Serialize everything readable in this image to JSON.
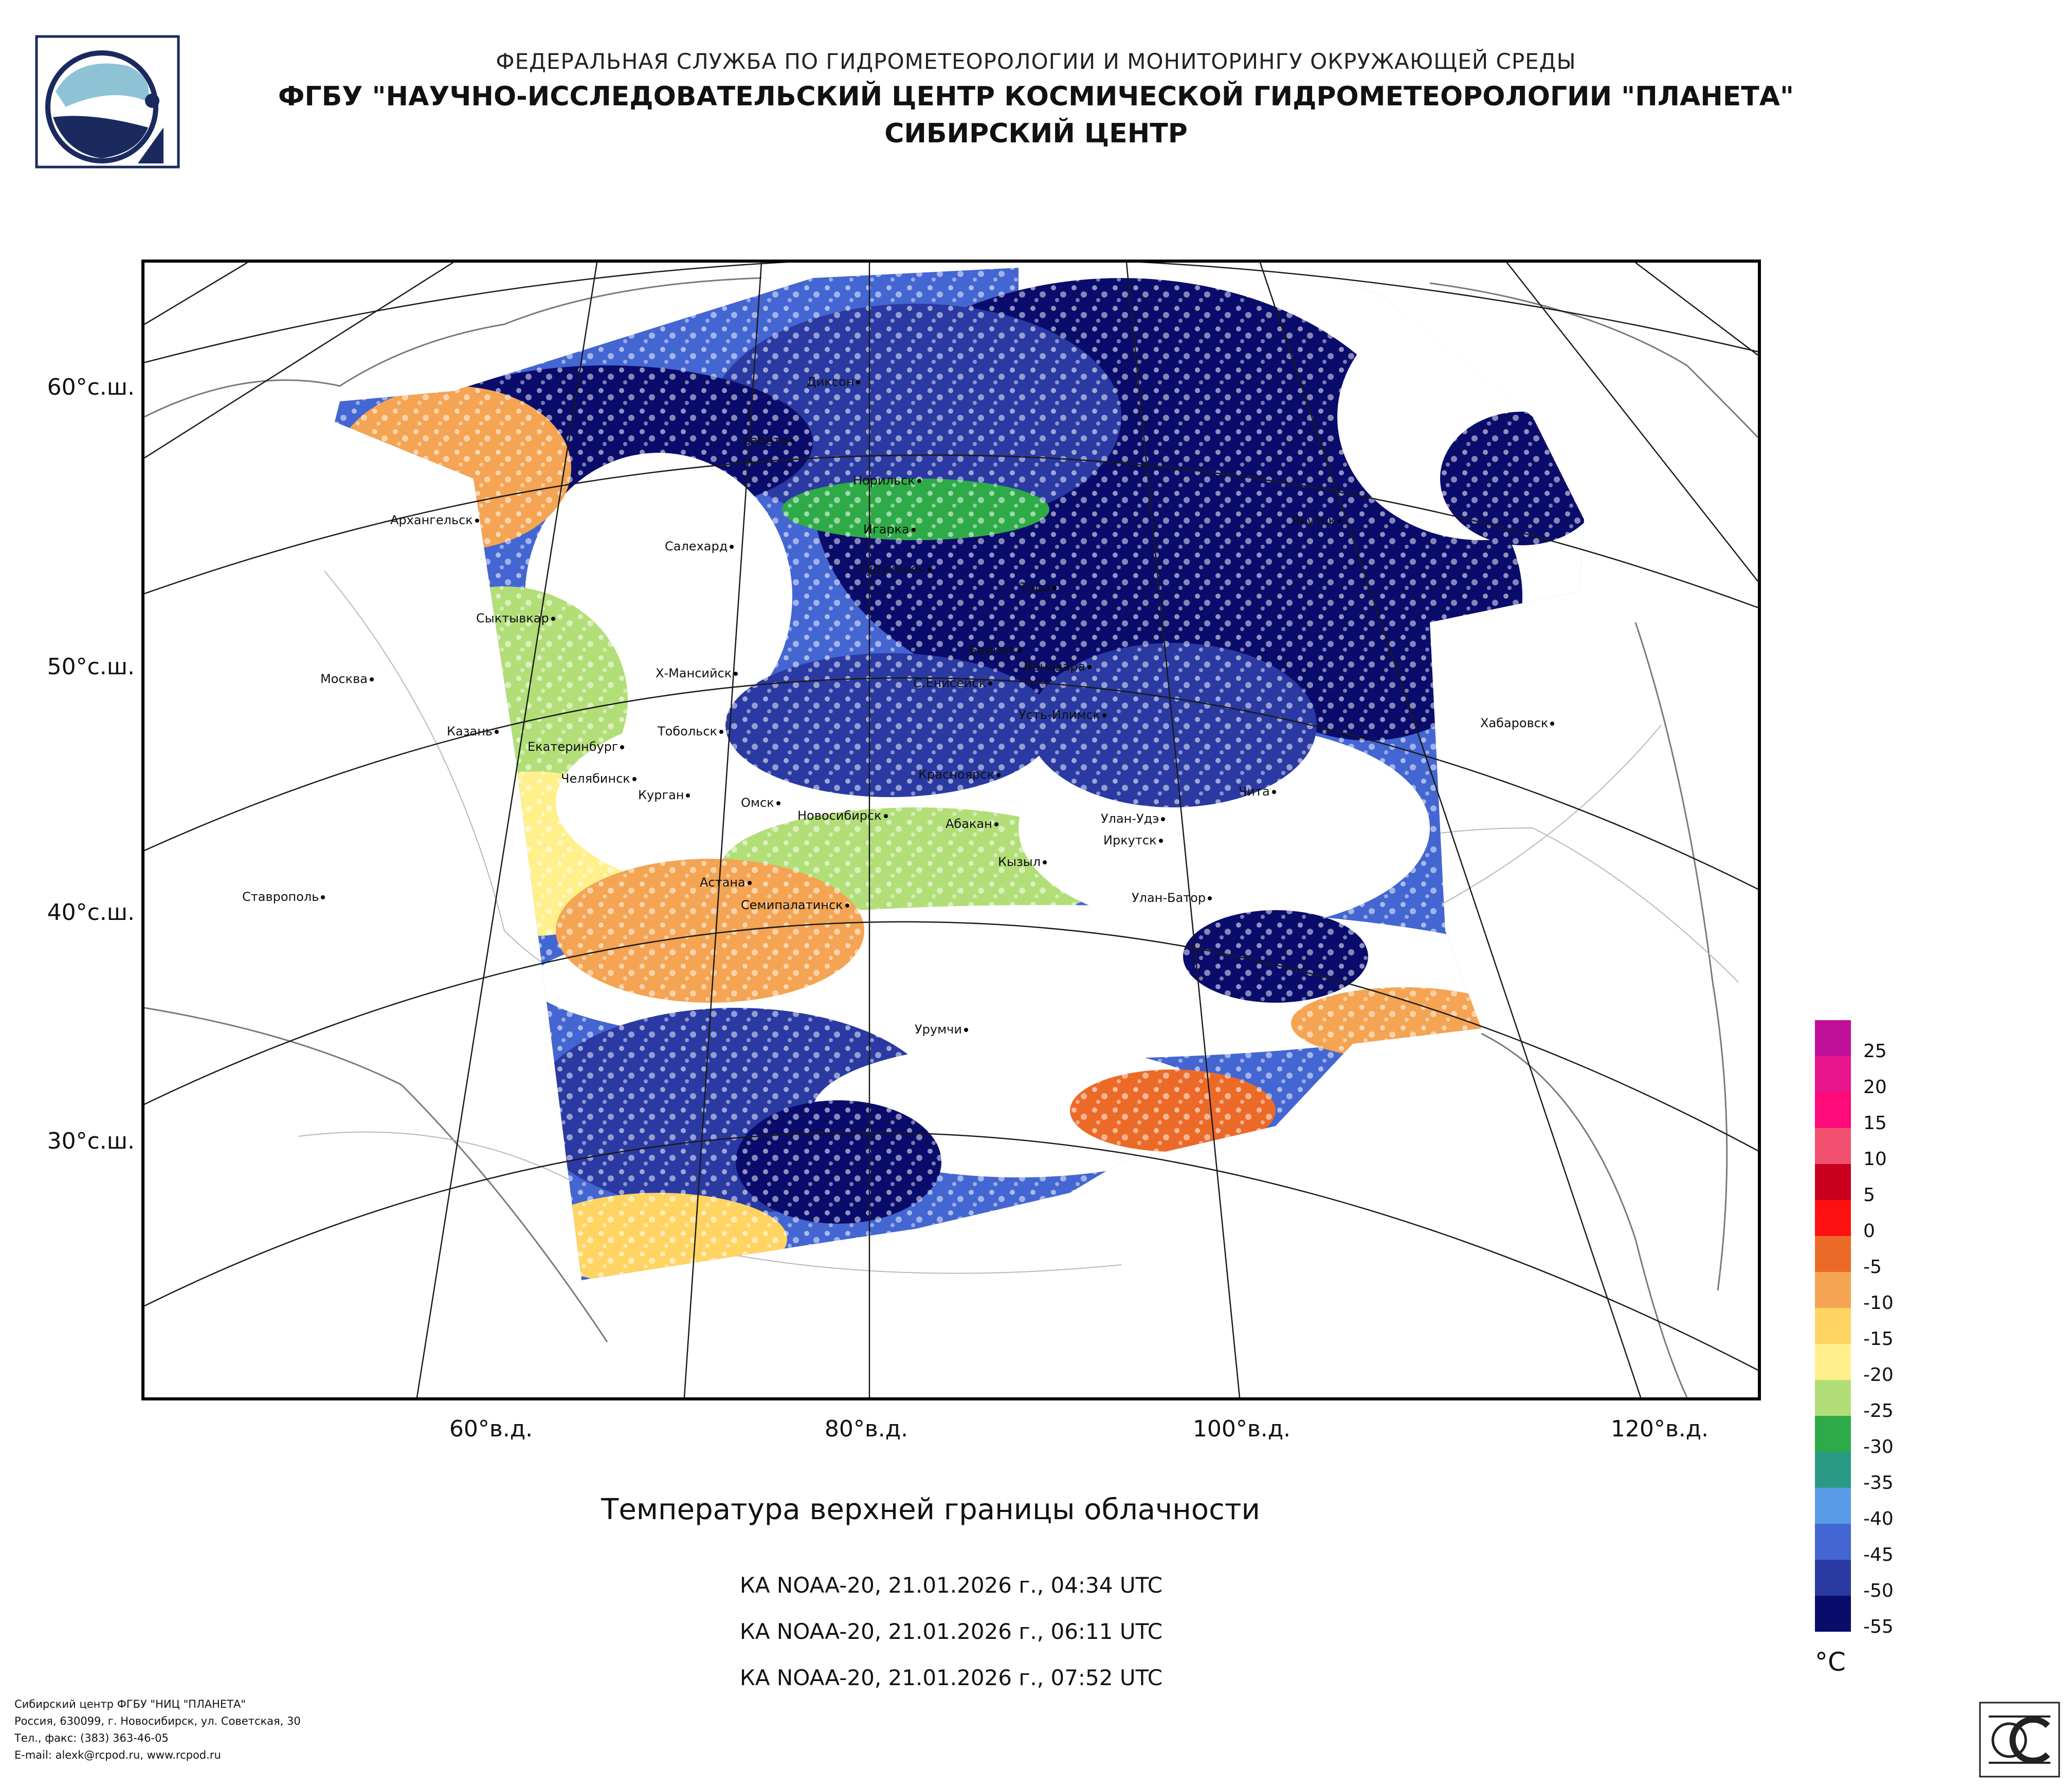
{
  "header": {
    "agency": "ФЕДЕРАЛЬНАЯ СЛУЖБА ПО ГИДРОМЕТЕОРОЛОГИИ И МОНИТОРИНГУ ОКРУЖАЮЩЕЙ СРЕДЫ",
    "institute": "ФГБУ \"НАУЧНО-ИССЛЕДОВАТЕЛЬСКИЙ ЦЕНТР КОСМИЧЕСКОЙ ГИДРОМЕТЕОРОЛОГИИ \"ПЛАНЕТА\"",
    "branch": "СИБИРСКИЙ ЦЕНТР"
  },
  "map": {
    "title": "Температура верхней границы облачности",
    "passes": [
      "КА NOAA-20, 21.01.2026 г., 04:34 UTC",
      "КА NOAA-20, 21.01.2026 г., 06:11 UTC",
      "КА NOAA-20, 21.01.2026 г., 07:52 UTC"
    ],
    "lat_labels": [
      "60°с.ш.",
      "50°с.ш.",
      "40°с.ш.",
      "30°с.ш."
    ],
    "lon_labels": [
      "60°в.д.",
      "80°в.д.",
      "100°в.д.",
      "120°в.д."
    ],
    "cities": [
      "Диксон",
      "Сабета",
      "Норильск",
      "Игарка",
      "Архангельск",
      "Салехард",
      "Туруханск",
      "Тура",
      "Якутск",
      "Сыктывкар",
      "Байкит",
      "Ванавара",
      "Москва",
      "Х-Мансийск",
      "С.Енисейск",
      "Усть-Илимск",
      "Хабаровск",
      "Казань",
      "Тобольск",
      "Екатеринбург",
      "Красноярск",
      "Челябинск",
      "Курган",
      "Омск",
      "Новосибирск",
      "Чита",
      "Абакан",
      "Улан-Удэ",
      "Иркутск",
      "Кызыл",
      "Астана",
      "Ставрополь",
      "Улан-Батор",
      "Семипалатинск",
      "Урумчи"
    ]
  },
  "legend": {
    "unit": "°C",
    "ticks": [
      "25",
      "20",
      "15",
      "10",
      "5",
      "0",
      "-5",
      "-10",
      "-15",
      "-20",
      "-25",
      "-30",
      "-35",
      "-40",
      "-45",
      "-50",
      "-55"
    ],
    "colors": [
      "#c0109a",
      "#e8168c",
      "#ff0a7a",
      "#f0506e",
      "#c8001e",
      "#ff1010",
      "#ec6a28",
      "#f4a452",
      "#ffd462",
      "#fff08c",
      "#b2de78",
      "#2eab48",
      "#2a9a84",
      "#5a9be6",
      "#4466d2",
      "#2a3aa2",
      "#0a0c6c"
    ]
  },
  "footer": [
    "Сибирский центр ФГБУ \"НИЦ \"ПЛАНЕТА\"",
    "Россия, 630099, г. Новосибирск, ул. Советская, 30",
    "Тел., факс: (383) 363-46-05",
    "E-mail: alexk@rcpod.ru, www.rcpod.ru"
  ]
}
